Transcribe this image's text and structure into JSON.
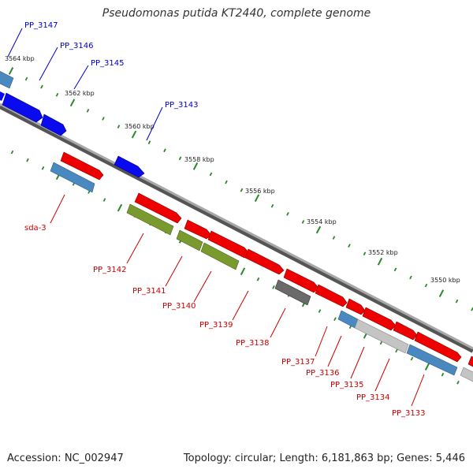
{
  "title": "Pseudomonas putida KT2440, complete genome",
  "footer": {
    "accession": "Accession: NC_002947",
    "summary": "Topology: circular; Length: 6,181,863 bp; Genes: 5,446"
  },
  "colors": {
    "backbone": "#8a8a8a",
    "tick": "#2a8a2a",
    "label_top": "#0000cc",
    "label_bottom": "#cc0000",
    "gene_red": "#ee0000",
    "gene_blue": "#0a0aee",
    "gene_steel": "#4a88c0",
    "gene_olive": "#7a9a30",
    "gene_gray": "#6a6a6a",
    "gene_silver": "#c4c4c4"
  },
  "kbp_labels": [
    "3564 kbp",
    "3562 kbp",
    "3560 kbp",
    "3558 kbp",
    "3556 kbp",
    "3554 kbp",
    "3552 kbp",
    "3550 kbp"
  ],
  "gene_labels_top": [
    "PP_3147",
    "PP_3146",
    "PP_3145",
    "PP_3143"
  ],
  "gene_labels_bottom": [
    "sda-3",
    "PP_3142",
    "PP_3141",
    "PP_3140",
    "PP_3139",
    "PP_3138",
    "PP_3137",
    "PP_3136",
    "PP_3135",
    "PP_3134",
    "PP_3133"
  ]
}
